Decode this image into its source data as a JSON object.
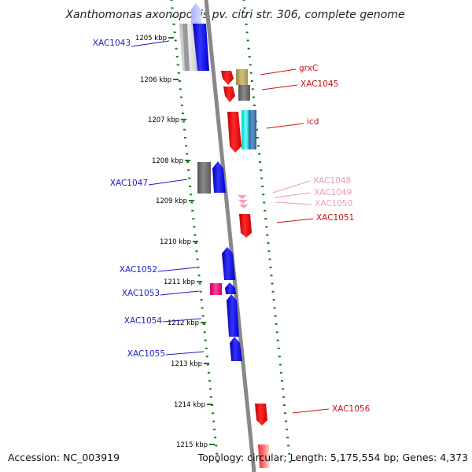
{
  "title": "Xanthomonas axonopodis pv. citri str. 306, complete genome",
  "footer": {
    "accession": "Accession: NC_003919",
    "summary": "Topology: circular; Length: 5,175,554 bp; Genes: 4,373"
  },
  "kbp_ticks": [
    "1205 kbp",
    "1206 kbp",
    "1207 kbp",
    "1208 kbp",
    "1209 kbp",
    "1210 kbp",
    "1211 kbp",
    "1212 kbp",
    "1213 kbp",
    "1214 kbp",
    "1215 kbp"
  ],
  "colors": {
    "axis": "#888888",
    "tick": "#1a7a1a",
    "label_blue": "#1a1acc",
    "label_red": "#cc1111",
    "label_pink": "#ee99bb"
  },
  "genes": [
    {
      "name": "XAC1043",
      "label_color": "blue"
    },
    {
      "name": "grxC",
      "label_color": "red"
    },
    {
      "name": "XAC1045",
      "label_color": "red"
    },
    {
      "name": "icd",
      "label_color": "red"
    },
    {
      "name": "XAC1047",
      "label_color": "blue"
    },
    {
      "name": "XAC1048",
      "label_color": "pink"
    },
    {
      "name": "XAC1049",
      "label_color": "pink"
    },
    {
      "name": "XAC1050",
      "label_color": "pink"
    },
    {
      "name": "XAC1051",
      "label_color": "red"
    },
    {
      "name": "XAC1052",
      "label_color": "blue"
    },
    {
      "name": "XAC1053",
      "label_color": "blue"
    },
    {
      "name": "XAC1054",
      "label_color": "blue"
    },
    {
      "name": "XAC1055",
      "label_color": "blue"
    },
    {
      "name": "XAC1056",
      "label_color": "red"
    }
  ]
}
